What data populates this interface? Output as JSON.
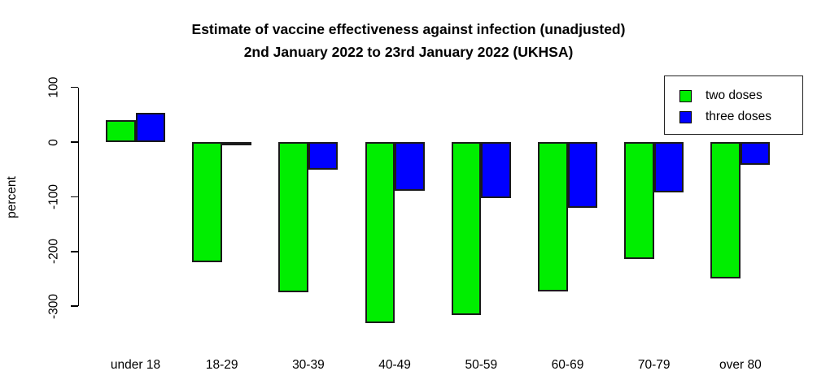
{
  "title": {
    "line1": "Estimate of vaccine effectiveness against infection (unadjusted)",
    "line2": "2nd January 2022 to 23rd January 2022 (UKHSA)"
  },
  "chart_data": {
    "type": "bar",
    "categories": [
      "under 18",
      "18-29",
      "30-39",
      "40-49",
      "50-59",
      "60-69",
      "70-79",
      "over 80"
    ],
    "series": [
      {
        "name": "two doses",
        "color": "#00ee00",
        "values": [
          40,
          -219,
          -274,
          -331,
          -316,
          -273,
          -214,
          -249
        ]
      },
      {
        "name": "three doses",
        "color": "#0000ff",
        "values": [
          54,
          -4,
          -51,
          -89,
          -103,
          -120,
          -92,
          -41
        ]
      }
    ],
    "title": "Estimate of vaccine effectiveness against infection (unadjusted) 2nd January 2022 to 23rd January 2022 (UKHSA)",
    "xlabel": "",
    "ylabel": "percent",
    "yticks": [
      100,
      0,
      -100,
      -200,
      -300
    ],
    "ylim": [
      -340,
      100
    ],
    "grid": false,
    "legend_position": "top-right",
    "bar_outline_color": "#1a1a1a"
  }
}
